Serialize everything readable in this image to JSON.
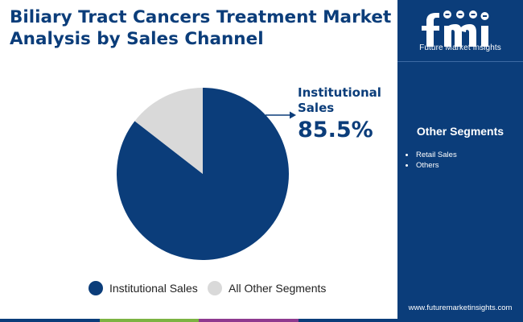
{
  "header": {
    "title_line1": "Biliary Tract Cancers Treatment Market",
    "title_line2": "Analysis by Sales Channel"
  },
  "chart_data": {
    "type": "pie",
    "title": "Biliary Tract Cancers Treatment Market Analysis by Sales Channel",
    "slices": [
      {
        "label": "Institutional Sales",
        "value": 85.5,
        "color": "#0b3d7a"
      },
      {
        "label": "All Other Segments",
        "value": 14.5,
        "color": "#d9d9d9"
      }
    ],
    "callout": {
      "label": "Institutional Sales",
      "value_text": "85.5%"
    },
    "legend_position": "bottom"
  },
  "legend": {
    "items": [
      {
        "label": "Institutional Sales",
        "color": "#0b3d7a"
      },
      {
        "label": "All Other Segments",
        "color": "#d9d9d9"
      }
    ]
  },
  "sidebar": {
    "logo_text": "Future Market Insights",
    "logo_icon": "fmi-logo-icon",
    "heading": "Other Segments",
    "items": [
      "Retail Sales",
      "Others"
    ],
    "website": "www.futuremarketinsights.com",
    "background_color": "#0b3d7a"
  },
  "bottom_bar_colors": [
    "#0b3d7a",
    "#7cb342",
    "#8e3a8f",
    "#0b3d7a"
  ]
}
